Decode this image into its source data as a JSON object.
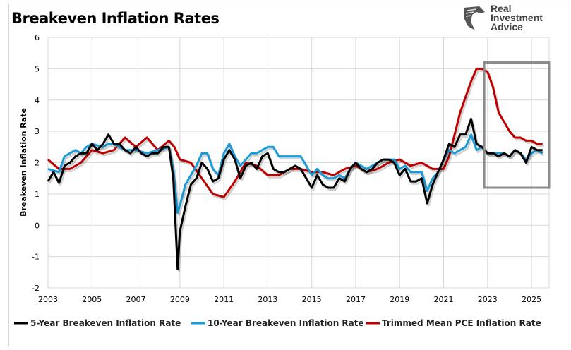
{
  "title": "Breakeven Inflation Rates",
  "logo": {
    "lines": [
      "Real",
      "Investment",
      "Advice"
    ]
  },
  "colors": {
    "five_year": "#000000",
    "ten_year": "#1a9bd7",
    "pce": "#c00000",
    "grid": "#d9d9d9",
    "highlight_box": "#8c8c8c"
  },
  "chart_data": {
    "type": "line",
    "title": "Breakeven Inflation Rates",
    "ylabel": "Breakeven Inflation Rate",
    "xlabel": "",
    "xlim": [
      2003,
      2025.8
    ],
    "ylim": [
      -2,
      6
    ],
    "yticks": [
      -2,
      -1,
      0,
      1,
      2,
      3,
      4,
      5,
      6
    ],
    "xticks": [
      2003,
      2005,
      2007,
      2009,
      2011,
      2013,
      2015,
      2017,
      2019,
      2021,
      2023,
      2025
    ],
    "grid": true,
    "legend_position": "bottom",
    "highlight_box": {
      "x": [
        2022.85,
        2025.8
      ],
      "y": [
        1.2,
        5.2
      ]
    },
    "series": [
      {
        "name": "5-Year Breakeven Inflation Rate",
        "color": "#000000",
        "x": [
          2003,
          2003.25,
          2003.5,
          2003.75,
          2004,
          2004.25,
          2004.5,
          2004.75,
          2005,
          2005.25,
          2005.5,
          2005.75,
          2006,
          2006.25,
          2006.5,
          2006.75,
          2007,
          2007.25,
          2007.5,
          2007.75,
          2008,
          2008.25,
          2008.5,
          2008.7,
          2008.9,
          2009,
          2009.25,
          2009.5,
          2009.75,
          2010,
          2010.25,
          2010.5,
          2010.75,
          2011,
          2011.25,
          2011.5,
          2011.75,
          2012,
          2012.25,
          2012.5,
          2012.75,
          2013,
          2013.25,
          2013.5,
          2013.75,
          2014,
          2014.25,
          2014.5,
          2014.75,
          2015,
          2015.25,
          2015.5,
          2015.75,
          2016,
          2016.25,
          2016.5,
          2016.75,
          2017,
          2017.25,
          2017.5,
          2017.75,
          2018,
          2018.25,
          2018.5,
          2018.75,
          2019,
          2019.25,
          2019.5,
          2019.75,
          2020,
          2020.25,
          2020.5,
          2020.75,
          2021,
          2021.25,
          2021.5,
          2021.75,
          2022,
          2022.25,
          2022.5,
          2022.75,
          2023,
          2023.25,
          2023.5,
          2023.75,
          2024,
          2024.25,
          2024.5,
          2024.75,
          2025,
          2025.25,
          2025.5
        ],
        "y": [
          1.4,
          1.7,
          1.35,
          1.9,
          2.0,
          2.2,
          2.3,
          2.3,
          2.6,
          2.4,
          2.6,
          2.9,
          2.6,
          2.6,
          2.4,
          2.3,
          2.5,
          2.3,
          2.2,
          2.3,
          2.3,
          2.5,
          2.5,
          1.5,
          -1.4,
          -0.2,
          0.6,
          1.3,
          1.5,
          2.0,
          1.8,
          1.4,
          1.5,
          2.1,
          2.4,
          2.1,
          1.5,
          1.9,
          2.0,
          1.8,
          2.2,
          2.3,
          1.8,
          1.7,
          1.7,
          1.8,
          1.9,
          1.8,
          1.5,
          1.2,
          1.6,
          1.3,
          1.2,
          1.2,
          1.5,
          1.4,
          1.8,
          2.0,
          1.8,
          1.7,
          1.8,
          2.0,
          2.1,
          2.1,
          2.0,
          1.6,
          1.8,
          1.4,
          1.4,
          1.5,
          0.7,
          1.3,
          1.7,
          2.1,
          2.6,
          2.5,
          2.9,
          2.9,
          3.4,
          2.6,
          2.5,
          2.3,
          2.3,
          2.2,
          2.3,
          2.2,
          2.4,
          2.3,
          2.0,
          2.5,
          2.4,
          2.4
        ]
      },
      {
        "name": "10-Year Breakeven Inflation Rate",
        "color": "#1a9bd7",
        "x": [
          2003,
          2003.5,
          2003.75,
          2004,
          2004.25,
          2004.5,
          2004.75,
          2005,
          2005.5,
          2005.75,
          2006,
          2006.5,
          2007,
          2007.5,
          2008,
          2008.5,
          2008.7,
          2008.9,
          2009.1,
          2009.25,
          2009.5,
          2009.75,
          2010,
          2010.25,
          2010.5,
          2010.75,
          2011,
          2011.25,
          2011.5,
          2011.75,
          2012,
          2012.25,
          2012.5,
          2012.75,
          2013,
          2013.25,
          2013.5,
          2013.75,
          2014,
          2014.25,
          2014.5,
          2014.75,
          2015,
          2015.25,
          2015.5,
          2015.75,
          2016,
          2016.25,
          2016.5,
          2016.75,
          2017,
          2017.25,
          2017.5,
          2017.75,
          2018,
          2018.25,
          2018.5,
          2018.75,
          2019,
          2019.25,
          2019.5,
          2019.75,
          2020,
          2020.25,
          2020.5,
          2020.75,
          2021,
          2021.25,
          2021.5,
          2021.75,
          2022,
          2022.25,
          2022.5,
          2022.75,
          2023,
          2023.25,
          2023.5,
          2023.75,
          2024,
          2024.25,
          2024.5,
          2024.75,
          2025,
          2025.25,
          2025.5
        ],
        "y": [
          1.8,
          1.7,
          2.2,
          2.3,
          2.4,
          2.3,
          2.5,
          2.6,
          2.5,
          2.6,
          2.6,
          2.4,
          2.4,
          2.3,
          2.4,
          2.5,
          1.8,
          0.4,
          0.9,
          1.3,
          1.6,
          1.9,
          2.3,
          2.3,
          1.8,
          1.6,
          2.3,
          2.6,
          2.2,
          1.9,
          2.1,
          2.3,
          2.3,
          2.4,
          2.5,
          2.5,
          2.2,
          2.2,
          2.2,
          2.2,
          2.2,
          1.9,
          1.6,
          1.8,
          1.6,
          1.5,
          1.5,
          1.6,
          1.5,
          1.8,
          2.0,
          1.9,
          1.8,
          1.9,
          2.0,
          2.1,
          2.1,
          2.1,
          1.8,
          1.9,
          1.7,
          1.7,
          1.7,
          1.1,
          1.5,
          1.7,
          2.1,
          2.4,
          2.3,
          2.4,
          2.5,
          2.9,
          2.4,
          2.5,
          2.3,
          2.3,
          2.3,
          2.3,
          2.2,
          2.4,
          2.3,
          2.1,
          2.3,
          2.4,
          2.3
        ]
      },
      {
        "name": "Trimmed Mean PCE Inflation Rate",
        "color": "#c00000",
        "x": [
          2003,
          2003.5,
          2004,
          2004.5,
          2005,
          2005.5,
          2006,
          2006.5,
          2007,
          2007.5,
          2008,
          2008.5,
          2008.75,
          2009,
          2009.5,
          2010,
          2010.5,
          2011,
          2011.5,
          2012,
          2012.5,
          2013,
          2013.5,
          2014,
          2014.5,
          2015,
          2015.5,
          2016,
          2016.5,
          2017,
          2017.5,
          2018,
          2018.5,
          2019,
          2019.5,
          2020,
          2020.5,
          2021,
          2021.25,
          2021.5,
          2021.75,
          2022,
          2022.25,
          2022.5,
          2022.75,
          2023,
          2023.25,
          2023.5,
          2023.75,
          2024,
          2024.25,
          2024.5,
          2024.75,
          2025,
          2025.25,
          2025.5
        ],
        "y": [
          2.1,
          1.8,
          1.8,
          2.0,
          2.4,
          2.3,
          2.4,
          2.8,
          2.5,
          2.8,
          2.4,
          2.7,
          2.5,
          2.1,
          2.0,
          1.5,
          1.0,
          0.9,
          1.4,
          2.0,
          1.9,
          1.6,
          1.6,
          1.8,
          1.8,
          1.7,
          1.7,
          1.6,
          1.8,
          1.9,
          1.7,
          1.8,
          2.0,
          2.1,
          1.9,
          2.0,
          1.8,
          1.8,
          2.2,
          2.9,
          3.6,
          4.1,
          4.6,
          5.0,
          5.0,
          4.9,
          4.4,
          3.6,
          3.3,
          3.0,
          2.8,
          2.8,
          2.7,
          2.7,
          2.6,
          2.6
        ]
      }
    ]
  }
}
